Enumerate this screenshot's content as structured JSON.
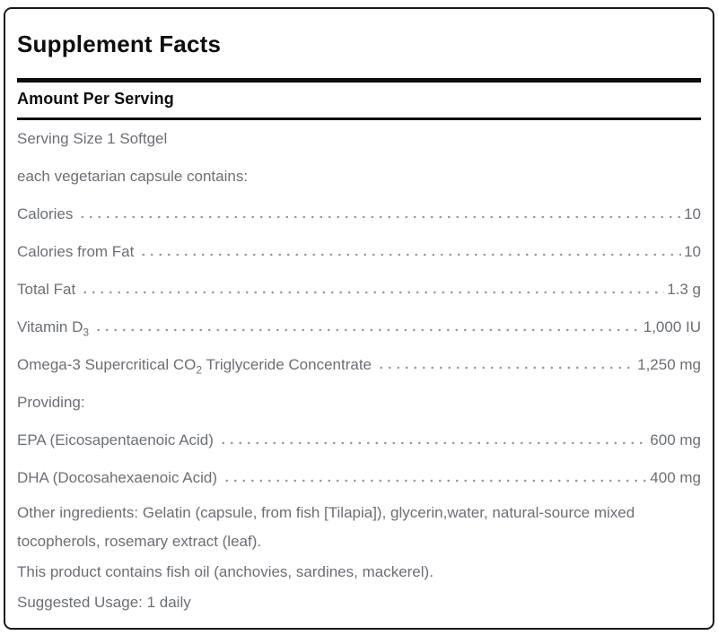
{
  "panel": {
    "title": "Supplement Facts",
    "section_header": "Amount Per Serving"
  },
  "rows": [
    {
      "label_pre": "Serving Size 1 Softgel",
      "label_sub": "",
      "label_post": "",
      "value": ""
    },
    {
      "label_pre": "each vegetarian capsule contains:",
      "label_sub": "",
      "label_post": "",
      "value": ""
    },
    {
      "label_pre": "Calories",
      "label_sub": "",
      "label_post": "",
      "value": "10"
    },
    {
      "label_pre": "Calories from Fat",
      "label_sub": "",
      "label_post": "",
      "value": "10"
    },
    {
      "label_pre": "Total Fat",
      "label_sub": "",
      "label_post": "",
      "value": "1.3 g"
    },
    {
      "label_pre": "Vitamin D",
      "label_sub": "3",
      "label_post": "",
      "value": "1,000 IU"
    },
    {
      "label_pre": "Omega-3 Supercritical CO",
      "label_sub": "2",
      "label_post": " Triglyceride Concentrate",
      "value": "1,250 mg"
    },
    {
      "label_pre": "Providing:",
      "label_sub": "",
      "label_post": "",
      "value": ""
    },
    {
      "label_pre": "EPA (Eicosapentaenoic Acid)",
      "label_sub": "",
      "label_post": "",
      "value": "600 mg"
    },
    {
      "label_pre": "DHA (Docosahexaenoic Acid)",
      "label_sub": "",
      "label_post": "",
      "value": "400 mg"
    }
  ],
  "footnotes": {
    "other_ingredients": "Other ingredients: Gelatin (capsule, from fish [Tilapia]), glycerin,water, natural-source mixed tocopherols, rosemary extract (leaf).",
    "contains": "This product contains fish oil (anchovies, sardines, mackerel).",
    "suggested_usage": "Suggested Usage: 1 daily"
  },
  "colors": {
    "heading": "#0d0d0d",
    "text": "#6b6f75",
    "dots": "#8c99a6",
    "border": "#1a1a1a"
  }
}
